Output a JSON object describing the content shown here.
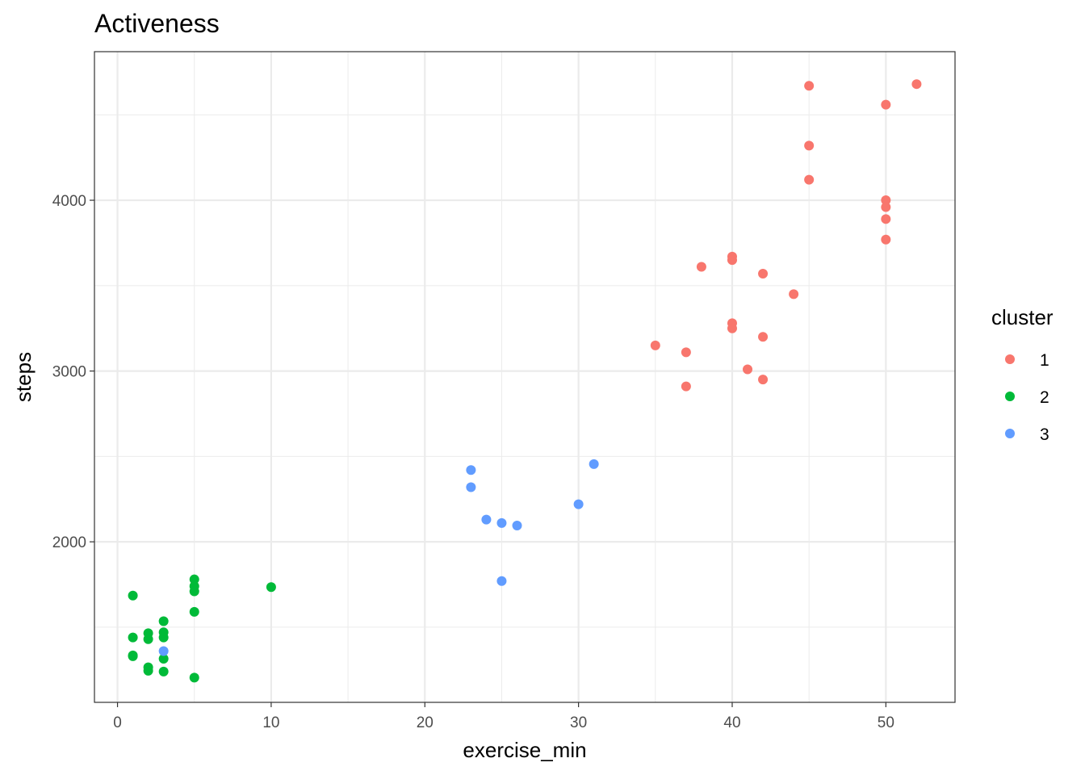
{
  "chart_data": {
    "type": "scatter",
    "title": "Activeness",
    "xlabel": "exercise_min",
    "ylabel": "steps",
    "xlim": [
      -1.5,
      54.5
    ],
    "ylim": [
      1060,
      4870
    ],
    "x_ticks": [
      0,
      10,
      20,
      30,
      40,
      50
    ],
    "x_tick_labels": [
      "0",
      "10",
      "20",
      "30",
      "40",
      "50"
    ],
    "y_ticks": [
      2000,
      3000,
      4000
    ],
    "y_tick_labels": [
      "2000",
      "3000",
      "4000"
    ],
    "x_minor_ticks": [
      5,
      15,
      25,
      35,
      45
    ],
    "y_minor_ticks": [
      1500,
      2500,
      3500,
      4500
    ],
    "grid": true,
    "legend": {
      "title": "cluster",
      "position": "right"
    },
    "series": [
      {
        "name": "1",
        "color": "#F8766D",
        "points": [
          {
            "x": 45,
            "y": 4670
          },
          {
            "x": 52,
            "y": 4680
          },
          {
            "x": 50,
            "y": 4560
          },
          {
            "x": 45,
            "y": 4320
          },
          {
            "x": 45,
            "y": 4120
          },
          {
            "x": 50,
            "y": 4000
          },
          {
            "x": 50,
            "y": 3960
          },
          {
            "x": 50,
            "y": 3890
          },
          {
            "x": 50,
            "y": 3770
          },
          {
            "x": 40,
            "y": 3670
          },
          {
            "x": 40,
            "y": 3650
          },
          {
            "x": 38,
            "y": 3610
          },
          {
            "x": 42,
            "y": 3570
          },
          {
            "x": 44,
            "y": 3450
          },
          {
            "x": 40,
            "y": 3280
          },
          {
            "x": 40,
            "y": 3250
          },
          {
            "x": 42,
            "y": 3200
          },
          {
            "x": 35,
            "y": 3150
          },
          {
            "x": 37,
            "y": 3110
          },
          {
            "x": 41,
            "y": 3010
          },
          {
            "x": 42,
            "y": 2950
          },
          {
            "x": 37,
            "y": 2910
          }
        ]
      },
      {
        "name": "2",
        "color": "#00BA38",
        "points": [
          {
            "x": 5,
            "y": 1780
          },
          {
            "x": 5,
            "y": 1740
          },
          {
            "x": 10,
            "y": 1735
          },
          {
            "x": 5,
            "y": 1710
          },
          {
            "x": 1,
            "y": 1685
          },
          {
            "x": 5,
            "y": 1590
          },
          {
            "x": 3,
            "y": 1535
          },
          {
            "x": 3,
            "y": 1470
          },
          {
            "x": 2,
            "y": 1465
          },
          {
            "x": 1,
            "y": 1440
          },
          {
            "x": 3,
            "y": 1440
          },
          {
            "x": 2,
            "y": 1430
          },
          {
            "x": 1,
            "y": 1335
          },
          {
            "x": 1,
            "y": 1330
          },
          {
            "x": 3,
            "y": 1315
          },
          {
            "x": 2,
            "y": 1265
          },
          {
            "x": 2,
            "y": 1245
          },
          {
            "x": 3,
            "y": 1240
          },
          {
            "x": 5,
            "y": 1205
          }
        ]
      },
      {
        "name": "3",
        "color": "#619CFF",
        "points": [
          {
            "x": 31,
            "y": 2455
          },
          {
            "x": 23,
            "y": 2420
          },
          {
            "x": 23,
            "y": 2320
          },
          {
            "x": 30,
            "y": 2220
          },
          {
            "x": 24,
            "y": 2130
          },
          {
            "x": 25,
            "y": 2110
          },
          {
            "x": 26,
            "y": 2095
          },
          {
            "x": 25,
            "y": 1770
          },
          {
            "x": 3,
            "y": 1360
          }
        ]
      }
    ]
  }
}
